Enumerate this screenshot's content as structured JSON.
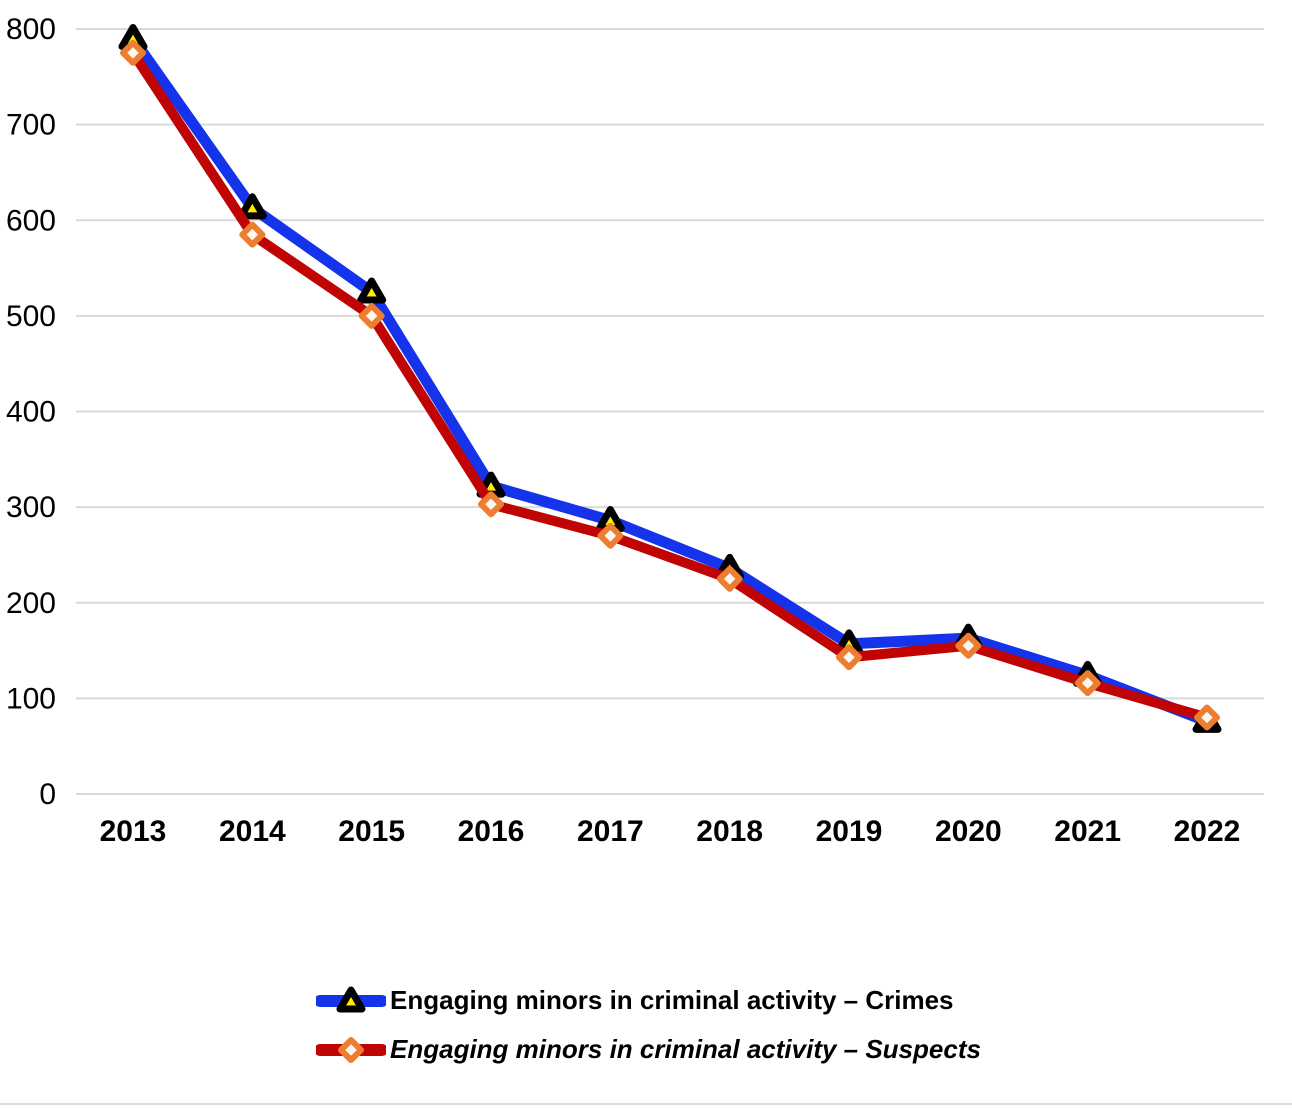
{
  "chart_data": {
    "type": "line",
    "categories": [
      "2013",
      "2014",
      "2015",
      "2016",
      "2017",
      "2018",
      "2019",
      "2020",
      "2021",
      "2022"
    ],
    "series": [
      {
        "name": "Engaging minors in criminal activity – Crimes",
        "values": [
          790,
          613,
          525,
          322,
          286,
          236,
          157,
          163,
          124,
          76
        ],
        "color": "#1433EB",
        "marker": "triangle",
        "marker_stroke": "#000000",
        "marker_fill": "#FFEE00"
      },
      {
        "name": "Engaging minors in criminal activity – Suspects",
        "values": [
          775,
          585,
          500,
          303,
          270,
          225,
          143,
          155,
          116,
          80
        ],
        "color": "#C00404",
        "marker": "diamond",
        "marker_stroke": "#ED7D31",
        "marker_fill": "#FAF7F2"
      }
    ],
    "title": "",
    "xlabel": "",
    "ylabel": "",
    "ylim": [
      0,
      800
    ],
    "y_ticks": [
      0,
      100,
      200,
      300,
      400,
      500,
      600,
      700,
      800
    ],
    "grid": true,
    "grid_color": "#D9D9D9",
    "legend_position": "bottom"
  }
}
